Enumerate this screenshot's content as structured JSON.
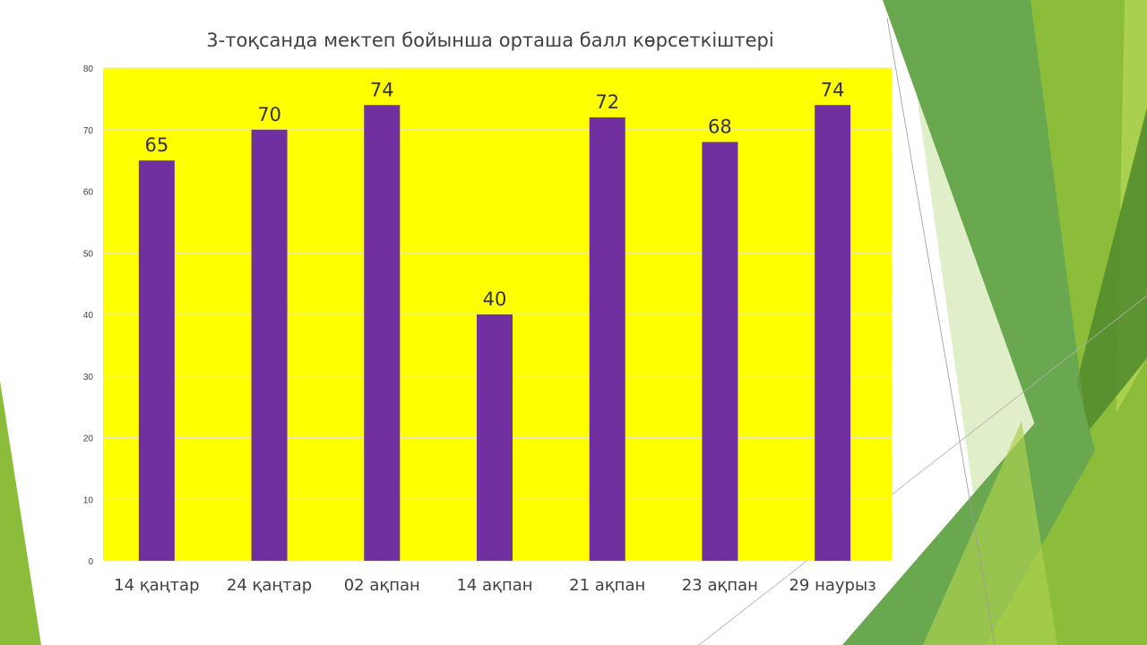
{
  "slide": {
    "decoration": {
      "colors": [
        "#6aa84f",
        "#8cbd3a",
        "#a9d04f",
        "#d6e9b8",
        "#4f8a2b"
      ],
      "motif": "green-triangle-facets"
    }
  },
  "chart_data": {
    "type": "bar",
    "title": "3-тоқсанда мектеп бойынша орташа балл көрсеткіштері",
    "xlabel": "",
    "ylabel": "",
    "categories": [
      "14 қаңтар",
      "24 қаңтар",
      "02 ақпан",
      "14 ақпан",
      "21 ақпан",
      "23 ақпан",
      "29 наурыз"
    ],
    "series": [
      {
        "values": [
          65,
          70,
          74,
          40,
          72,
          68,
          74
        ]
      }
    ],
    "ylim": [
      0,
      80
    ],
    "yticks": [
      0,
      10,
      20,
      30,
      40,
      50,
      60,
      70,
      80
    ],
    "grid": true,
    "legend": "none",
    "data_labels": true,
    "colors": {
      "bar": "#7030a0",
      "plot_background": "#ffff00",
      "gridline": "#e8e8c0"
    }
  }
}
